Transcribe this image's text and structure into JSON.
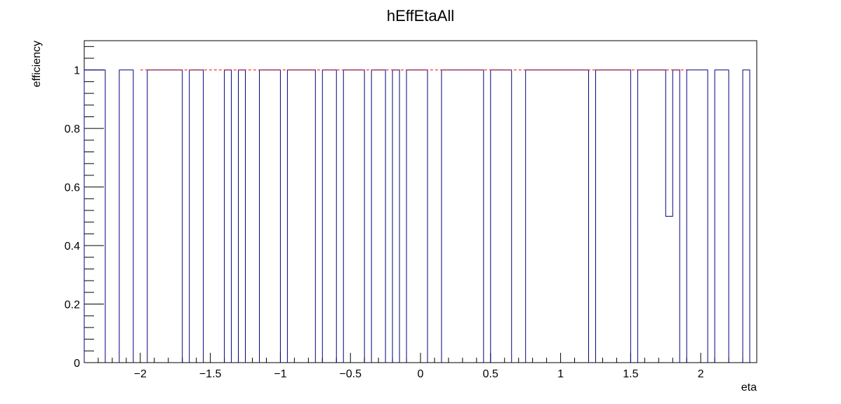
{
  "chart_data": {
    "type": "histogram",
    "title": "hEffEtaAll",
    "xlabel": "eta",
    "ylabel": "efficiency",
    "xlim": [
      -2.4,
      2.4
    ],
    "ylim": [
      0,
      1.1
    ],
    "x_ticks": [
      -2,
      -1.5,
      -1,
      -0.5,
      0,
      0.5,
      1,
      1.5,
      2
    ],
    "x_tick_labels": [
      "−2",
      "−1.5",
      "−1",
      "−0.5",
      "0",
      "0.5",
      "1",
      "1.5",
      "2"
    ],
    "y_ticks": [
      0,
      0.2,
      0.4,
      0.6,
      0.8,
      1
    ],
    "y_tick_labels": [
      "0",
      "0.2",
      "0.4",
      "0.6",
      "0.8",
      "1"
    ],
    "bin_width": 0.05,
    "bins": [
      {
        "x0": -2.4,
        "x1": -2.25,
        "y": 1
      },
      {
        "x0": -2.15,
        "x1": -2.05,
        "y": 1
      },
      {
        "x0": -1.95,
        "x1": -1.7,
        "y": 1
      },
      {
        "x0": -1.65,
        "x1": -1.55,
        "y": 1
      },
      {
        "x0": -1.4,
        "x1": -1.35,
        "y": 1
      },
      {
        "x0": -1.3,
        "x1": -1.25,
        "y": 1
      },
      {
        "x0": -1.15,
        "x1": -1.0,
        "y": 1
      },
      {
        "x0": -0.95,
        "x1": -0.75,
        "y": 1
      },
      {
        "x0": -0.7,
        "x1": -0.6,
        "y": 1
      },
      {
        "x0": -0.55,
        "x1": -0.4,
        "y": 1
      },
      {
        "x0": -0.35,
        "x1": -0.25,
        "y": 1
      },
      {
        "x0": -0.2,
        "x1": -0.15,
        "y": 1
      },
      {
        "x0": -0.1,
        "x1": 0.05,
        "y": 1
      },
      {
        "x0": 0.15,
        "x1": 0.45,
        "y": 1
      },
      {
        "x0": 0.5,
        "x1": 0.65,
        "y": 1
      },
      {
        "x0": 0.75,
        "x1": 1.0,
        "y": 1
      },
      {
        "x0": 1.0,
        "x1": 1.2,
        "y": 1
      },
      {
        "x0": 1.25,
        "x1": 1.5,
        "y": 1
      },
      {
        "x0": 1.55,
        "x1": 1.75,
        "y": 1
      },
      {
        "x0": 1.75,
        "x1": 1.8,
        "y": 0.5
      },
      {
        "x0": 1.8,
        "x1": 1.85,
        "y": 1
      },
      {
        "x0": 1.9,
        "x1": 2.05,
        "y": 1
      },
      {
        "x0": 2.1,
        "x1": 2.2,
        "y": 1
      },
      {
        "x0": 2.3,
        "x1": 2.35,
        "y": 1
      }
    ],
    "fit_line": {
      "x0": -2.0,
      "x1": 1.9,
      "y": 1
    },
    "colors": {
      "histogram": "#000080",
      "fit": "#ff0000",
      "axes": "#000000"
    }
  }
}
